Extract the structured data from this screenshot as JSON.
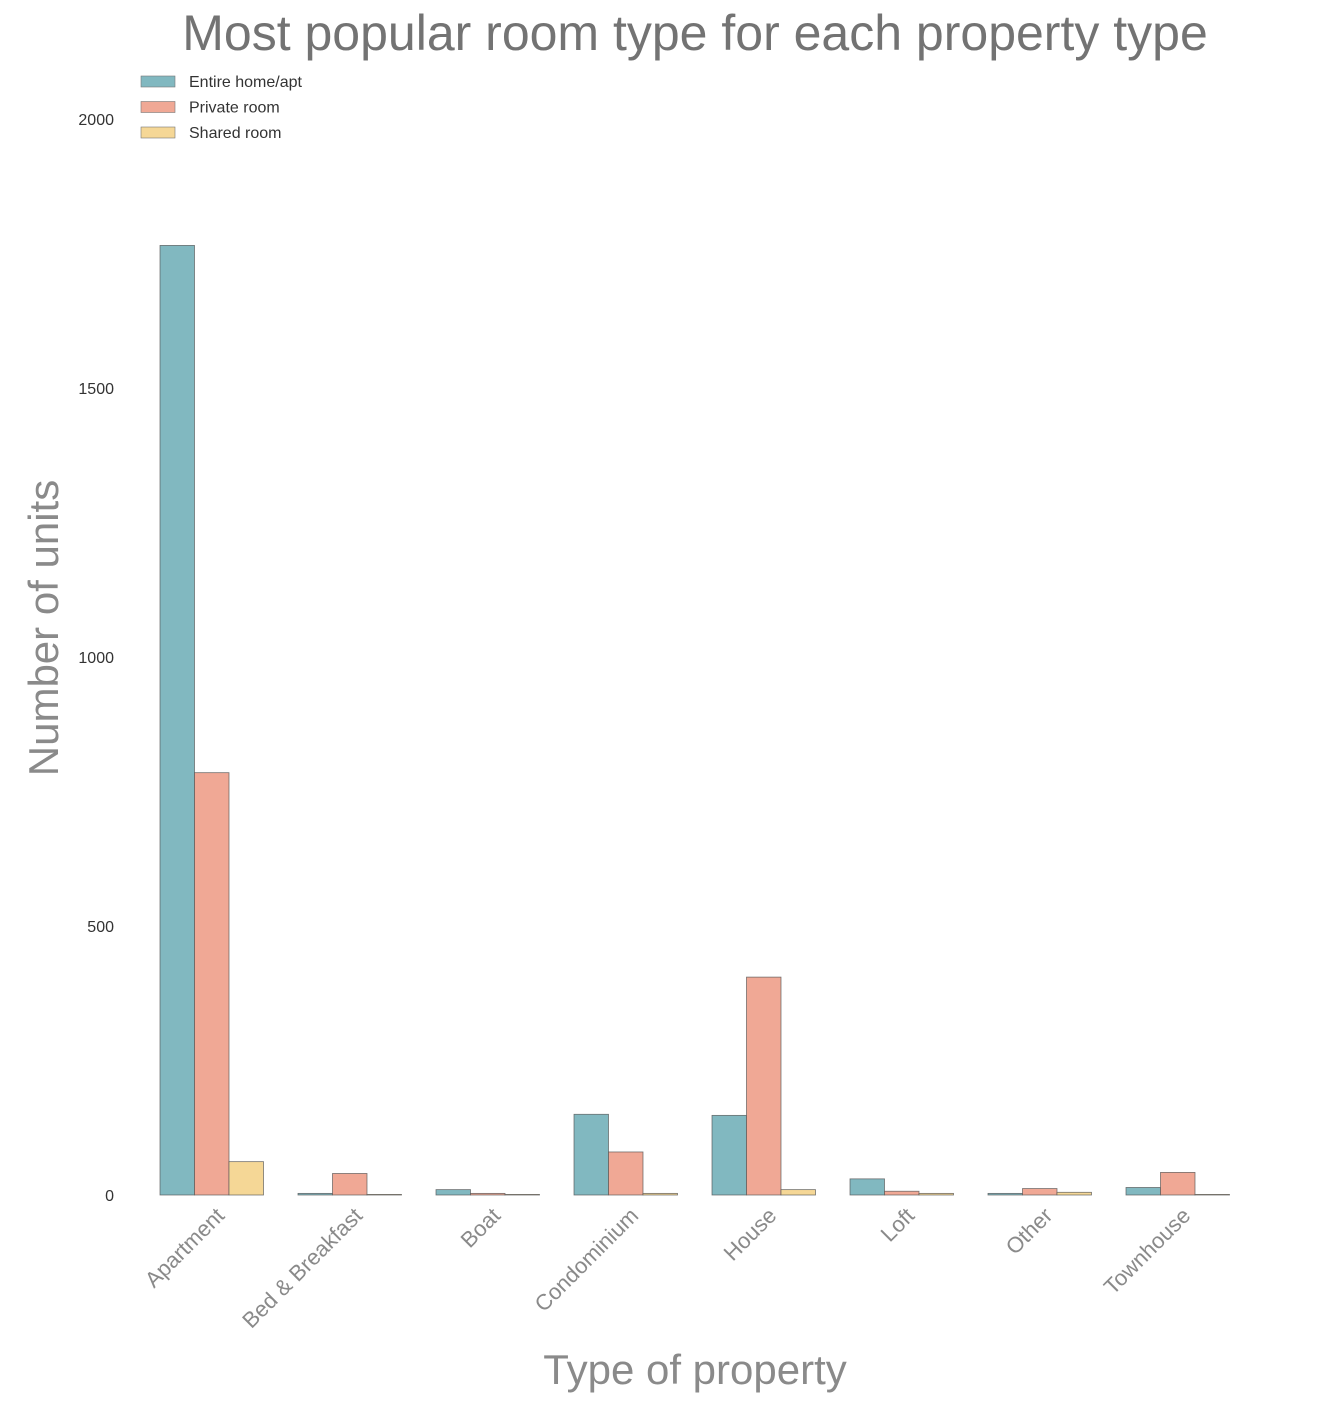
{
  "chart_data": {
    "type": "bar",
    "title": "Most popular room type for each property type",
    "xlabel": "Type of property",
    "ylabel": "Number of units",
    "categories": [
      "Apartment",
      "Bed & Breakfast",
      "Boat",
      "Condominium",
      "House",
      "Loft",
      "Other",
      "Townhouse"
    ],
    "series": [
      {
        "name": "Entire home/apt",
        "color": "#81b8c0",
        "values": [
          1765,
          3,
          10,
          150,
          148,
          30,
          3,
          14
        ]
      },
      {
        "name": "Private room",
        "color": "#f0a895",
        "values": [
          785,
          40,
          3,
          80,
          405,
          7,
          12,
          42
        ]
      },
      {
        "name": "Shared room",
        "color": "#f5d796",
        "values": [
          62,
          1,
          0,
          3,
          10,
          3,
          5,
          0
        ]
      }
    ],
    "ylim": [
      0,
      2000
    ],
    "yticks": [
      0,
      500,
      1000,
      1500,
      2000
    ],
    "grid": false,
    "legend_position": "top-left"
  }
}
